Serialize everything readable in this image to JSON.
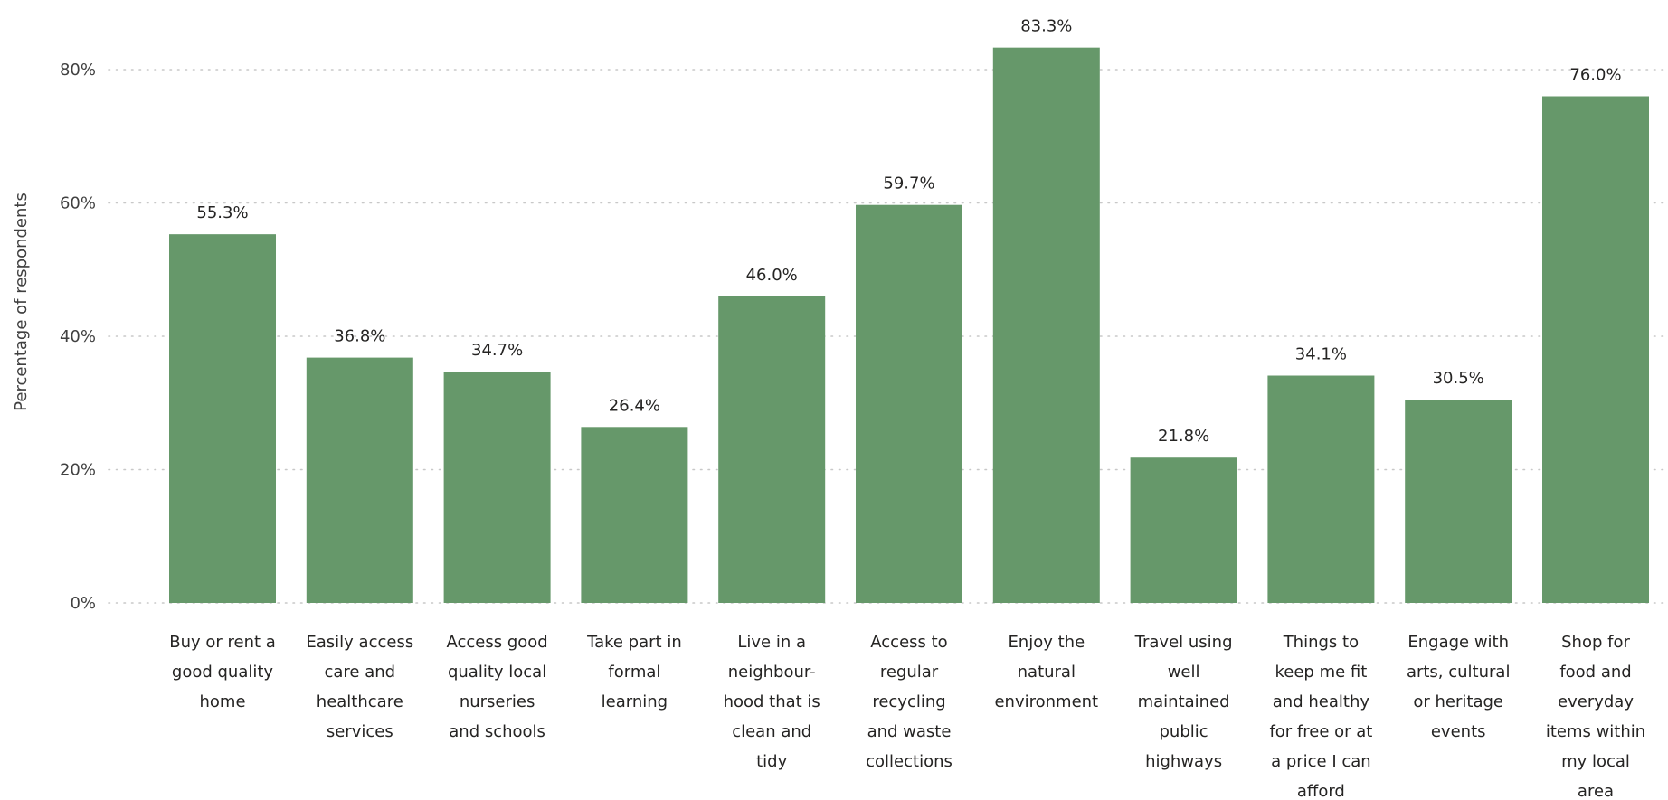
{
  "chart_data": {
    "type": "bar",
    "title": "",
    "xlabel": "",
    "ylabel": "Percentage of respondents",
    "ylim": [
      0,
      85
    ],
    "yticks": [
      "0%",
      "20%",
      "40%",
      "60%",
      "80%"
    ],
    "ytick_values": [
      0,
      20,
      40,
      60,
      80
    ],
    "grid": true,
    "bar_color": "#66986A",
    "categories": [
      [
        "Buy or rent a",
        "good quality",
        "home"
      ],
      [
        "Easily access",
        "care and",
        "healthcare",
        "services"
      ],
      [
        "Access good",
        "quality local",
        "nurseries",
        "and schools"
      ],
      [
        "Take part in",
        "formal",
        "learning"
      ],
      [
        "Live in a",
        "neighbour-",
        "hood that is",
        "clean and",
        "tidy"
      ],
      [
        "Access to",
        "regular",
        "recycling",
        "and waste",
        "collections"
      ],
      [
        "Enjoy the",
        "natural",
        "environment"
      ],
      [
        "Travel using",
        "well",
        "maintained",
        "public",
        "highways"
      ],
      [
        "Things to",
        "keep me fit",
        "and healthy",
        "for free or at",
        "a price I can",
        "afford"
      ],
      [
        "Engage with",
        "arts, cultural",
        "or heritage",
        "events"
      ],
      [
        "Shop for",
        "food and",
        "everyday",
        "items within",
        "my local",
        "area"
      ]
    ],
    "values": [
      55.3,
      36.8,
      34.7,
      26.4,
      46.0,
      59.7,
      83.3,
      21.8,
      34.1,
      30.5,
      76.0
    ],
    "data_labels": [
      "55.3%",
      "36.8%",
      "34.7%",
      "26.4%",
      "46.0%",
      "59.7%",
      "83.3%",
      "21.8%",
      "34.1%",
      "30.5%",
      "76.0%"
    ]
  }
}
